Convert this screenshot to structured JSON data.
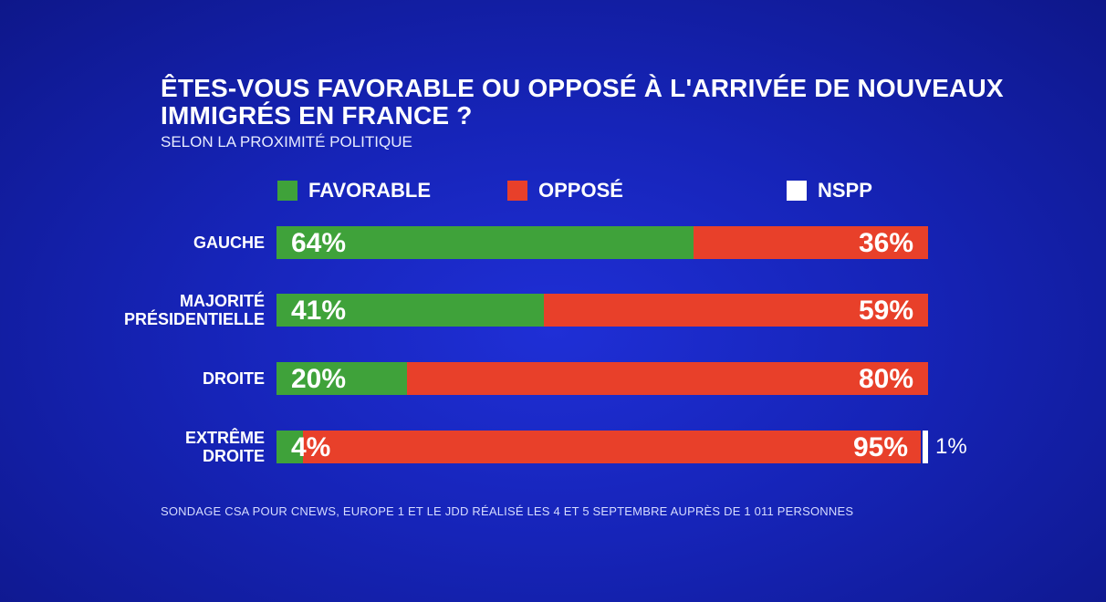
{
  "chart_data": {
    "type": "bar",
    "orientation": "horizontal",
    "stacked": true,
    "title": "ÊTES-VOUS FAVORABLE OU OPPOSÉ À L'ARRIVÉE DE NOUVEAUX IMMIGRÉS EN FRANCE ?",
    "subtitle": "SELON LA PROXIMITÉ POLITIQUE",
    "legend": [
      "FAVORABLE",
      "OPPOSÉ",
      "NSPP"
    ],
    "categories": [
      "GAUCHE",
      "MAJORITÉ PRÉSIDENTIELLE",
      "DROITE",
      "EXTRÊME DROITE"
    ],
    "category_display": [
      [
        "GAUCHE"
      ],
      [
        "MAJORITÉ",
        "PRÉSIDENTIELLE"
      ],
      [
        "DROITE"
      ],
      [
        "EXTRÊME",
        "DROITE"
      ]
    ],
    "series": [
      {
        "name": "FAVORABLE",
        "values": [
          64,
          41,
          20,
          4
        ],
        "labels": [
          "64%",
          "41%",
          "20%",
          "4%"
        ]
      },
      {
        "name": "OPPOSÉ",
        "values": [
          36,
          59,
          80,
          95
        ],
        "labels": [
          "36%",
          "59%",
          "80%",
          "95%"
        ]
      },
      {
        "name": "NSPP",
        "values": [
          0,
          0,
          0,
          1
        ],
        "labels": [
          "",
          "",
          "",
          "1%"
        ]
      }
    ],
    "xlim": [
      0,
      100
    ],
    "colors": {
      "FAVORABLE": "#3fa23a",
      "OPPOSÉ": "#e8402a",
      "NSPP": "#ffffff"
    }
  },
  "footnote": "SONDAGE CSA POUR CNEWS, EUROPE 1 ET LE JDD RÉALISÉ LES 4 ET 5 SEPTEMBRE AUPRÈS DE 1 011 PERSONNES"
}
